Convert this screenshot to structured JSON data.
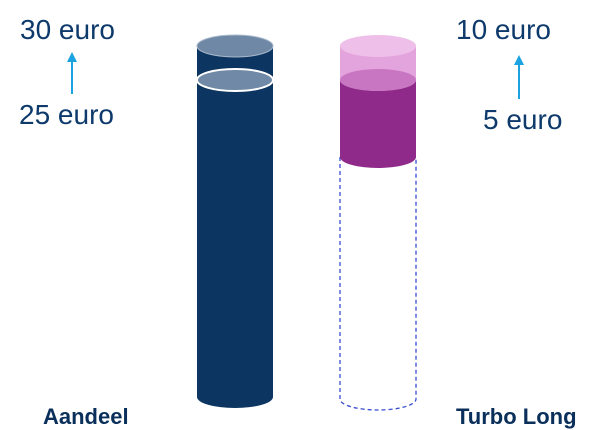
{
  "left": {
    "price_from": "25 euro",
    "price_to": "30 euro",
    "name": "Aandeel"
  },
  "right": {
    "price_from": "5 euro",
    "price_to": "10 euro",
    "name": "Turbo Long"
  },
  "colors": {
    "text": "#0d3a6b",
    "arrow": "#1aa3e0",
    "aandeel_body": "#0c3561",
    "aandeel_top": "#6f88a6",
    "turbo_light": "#eebfe8",
    "turbo_mid": "#c976c2",
    "turbo_dark": "#8f2a8a",
    "turbo_outline": "#3b4fd1"
  }
}
